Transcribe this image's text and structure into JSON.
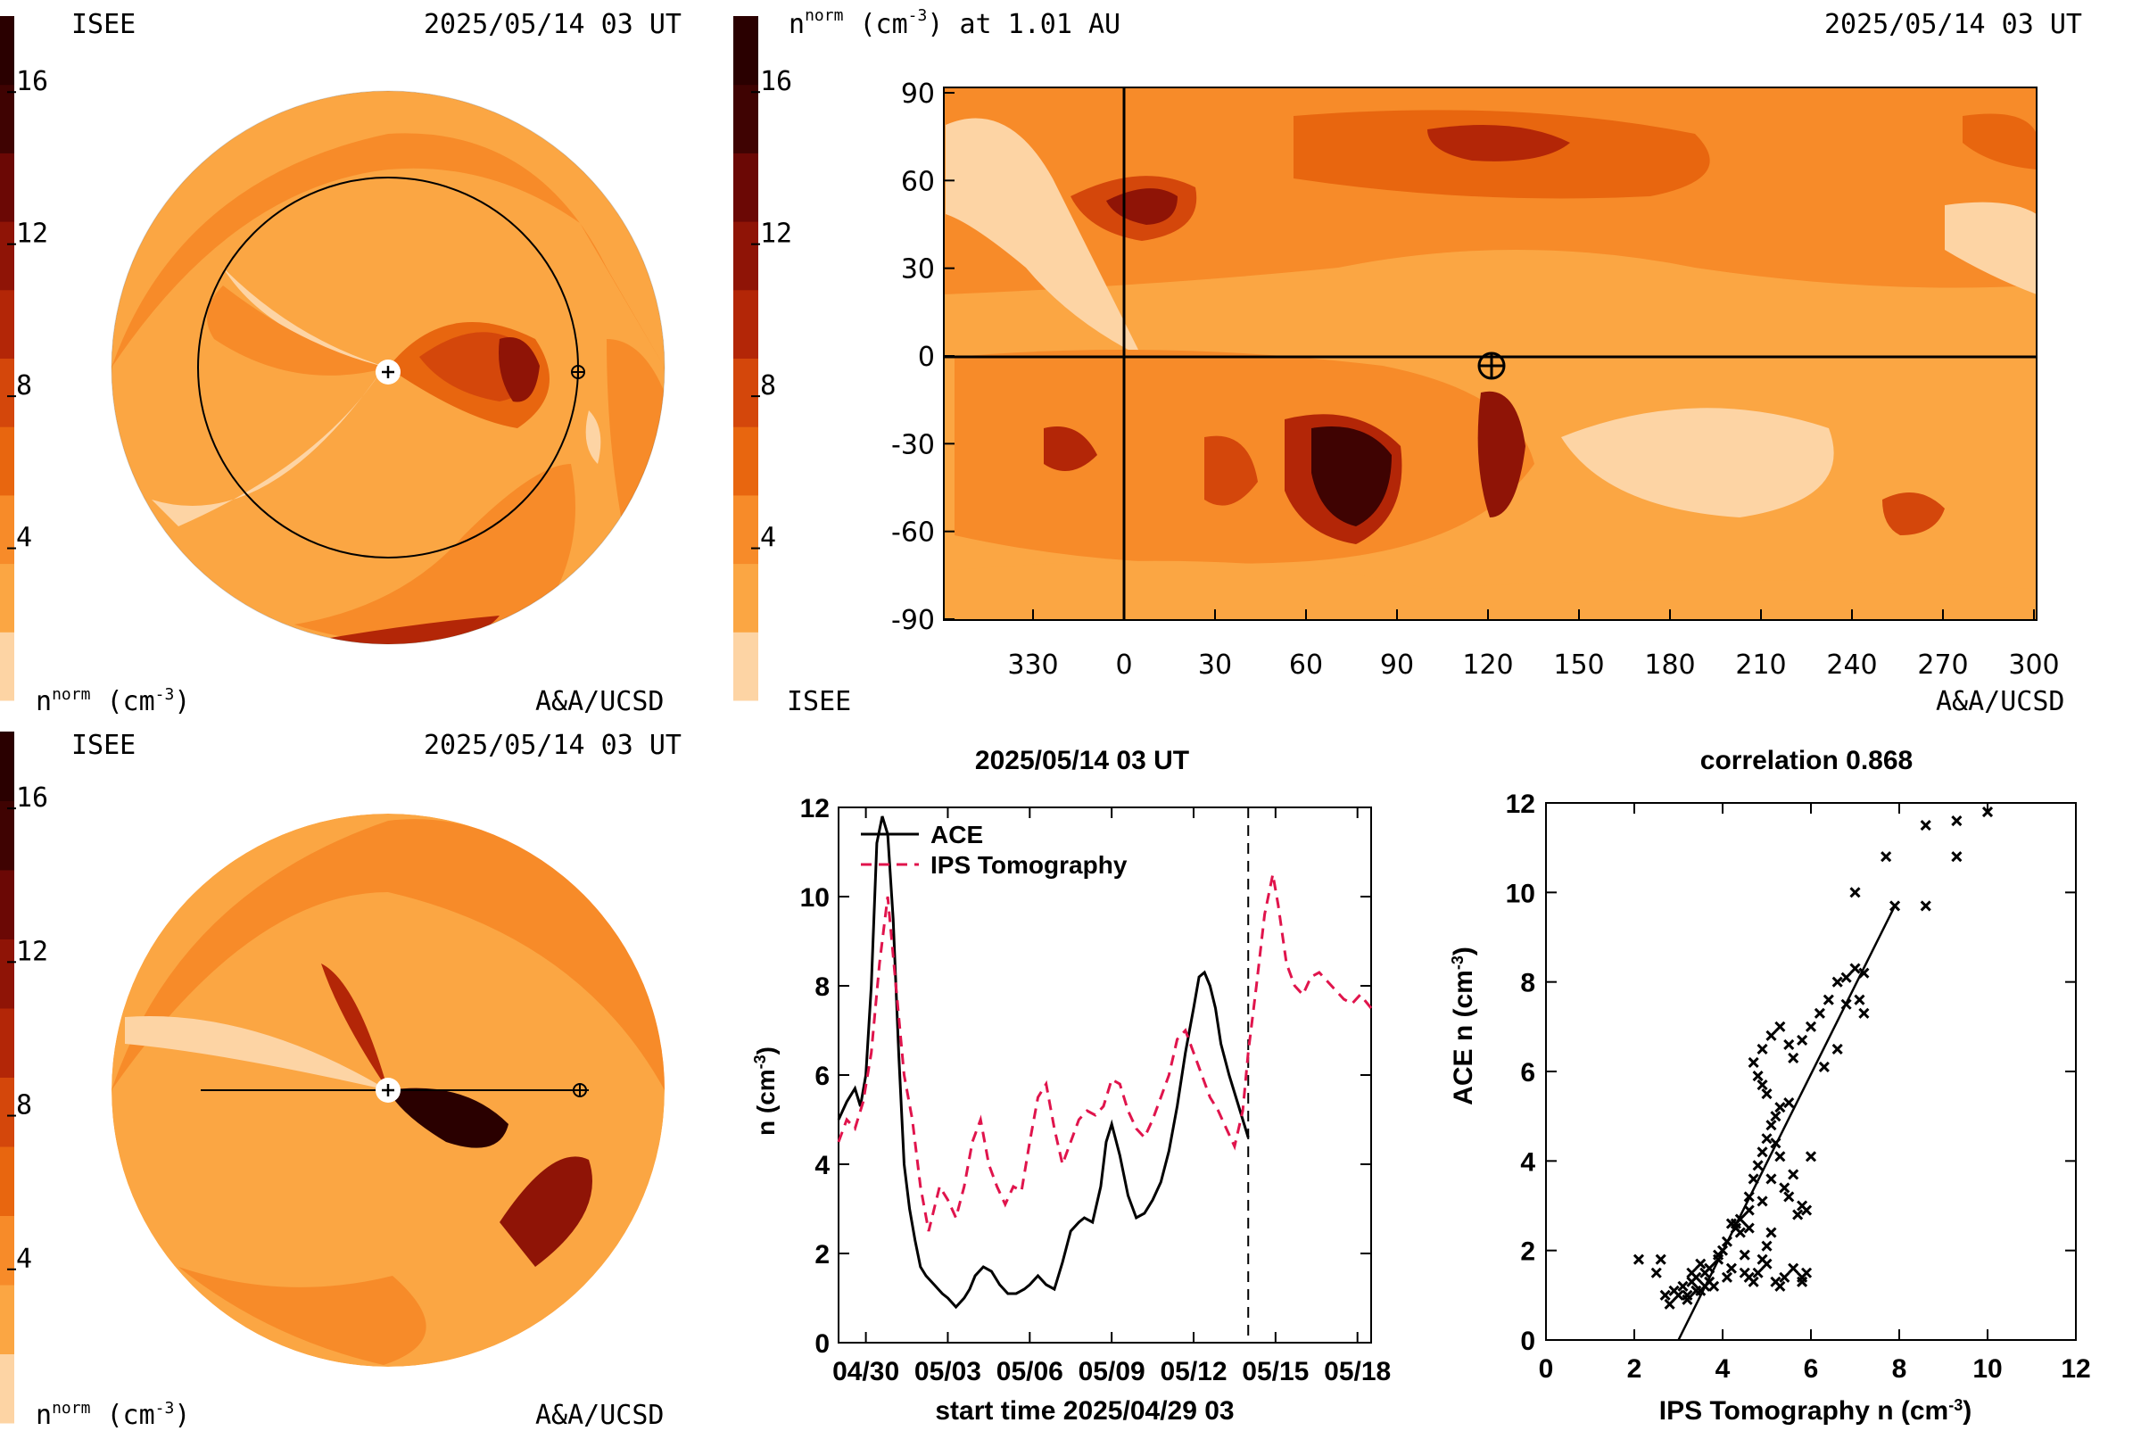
{
  "palette": [
    "#fdd4a4",
    "#fba643",
    "#f78b29",
    "#e8660f",
    "#d4470b",
    "#b32607",
    "#8f1406",
    "#6b0805",
    "#3f0302",
    "#2a0000"
  ],
  "colorbar": {
    "ticks": [
      "4",
      "8",
      "12",
      "16"
    ],
    "min": 0,
    "max": 18
  },
  "panel_top_left": {
    "label_left": "ISEE",
    "label_right": "2025/05/14 03 UT",
    "bottom_left": "n",
    "bottom_left_sup": "norm",
    "bottom_left_units": " (cm",
    "bottom_left_units_sup": "-3",
    "bottom_left_close": ")",
    "bottom_right": "A&A/UCSD"
  },
  "panel_bottom_left": {
    "label_left": "ISEE",
    "label_right": "2025/05/14 03 UT",
    "bottom_left": "n",
    "bottom_left_sup": "norm",
    "bottom_left_units": " (cm",
    "bottom_left_units_sup": "-3",
    "bottom_left_close": ")",
    "bottom_right": "A&A/UCSD"
  },
  "panel_map": {
    "title_main": "n",
    "title_sup": "norm",
    "title_units": " (cm",
    "title_units_sup": "-3",
    "title_rest": ") at 1.01 AU",
    "title_right": "2025/05/14 03 UT",
    "bottom_left": "ISEE",
    "bottom_right": "A&A/UCSD",
    "y_ticks": [
      "90",
      "60",
      "30",
      "0",
      "-30",
      "-60",
      "-90"
    ],
    "x_ticks": [
      "330",
      "0",
      "30",
      "60",
      "90",
      "120",
      "150",
      "180",
      "210",
      "240",
      "270",
      "300"
    ]
  },
  "chart_data": [
    {
      "type": "line",
      "title": "2025/05/14 03 UT",
      "xlabel": "start time 2025/04/29 03",
      "ylabel": "n (cm",
      "ylabel_sup": "-3",
      "ylabel_close": ")",
      "x_tick_labels": [
        "04/30",
        "05/03",
        "05/06",
        "05/09",
        "05/12",
        "05/15",
        "05/18"
      ],
      "x_tick_days": [
        1,
        4,
        7,
        10,
        13,
        16,
        19
      ],
      "xlim": [
        0,
        19.5
      ],
      "ylim": [
        0,
        12
      ],
      "y_ticks": [
        "0",
        "2",
        "4",
        "6",
        "8",
        "10",
        "12"
      ],
      "current_time_day": 15.0,
      "series": [
        {
          "name": "ACE",
          "color": "#000000",
          "dash": "",
          "x": [
            0,
            0.3,
            0.6,
            0.8,
            1.0,
            1.2,
            1.4,
            1.6,
            1.8,
            2.0,
            2.2,
            2.4,
            2.6,
            2.8,
            3.0,
            3.2,
            3.5,
            3.8,
            4.0,
            4.3,
            4.6,
            4.8,
            5.0,
            5.3,
            5.6,
            5.9,
            6.2,
            6.5,
            6.8,
            7.0,
            7.3,
            7.6,
            7.9,
            8.2,
            8.5,
            8.8,
            9.0,
            9.3,
            9.6,
            9.8,
            10.0,
            10.3,
            10.6,
            10.9,
            11.2,
            11.5,
            11.8,
            12.1,
            12.4,
            12.7,
            13.0,
            13.2,
            13.4,
            13.6,
            13.8,
            14.0,
            14.3,
            14.6,
            15.0
          ],
          "y": [
            5.0,
            5.4,
            5.7,
            5.3,
            6.0,
            8.0,
            11.2,
            11.8,
            11.4,
            9.5,
            6.5,
            4.0,
            3.0,
            2.3,
            1.7,
            1.5,
            1.3,
            1.1,
            1.0,
            0.8,
            1.0,
            1.2,
            1.5,
            1.7,
            1.6,
            1.3,
            1.1,
            1.1,
            1.2,
            1.3,
            1.5,
            1.3,
            1.2,
            1.8,
            2.5,
            2.7,
            2.8,
            2.7,
            3.5,
            4.5,
            4.9,
            4.2,
            3.3,
            2.8,
            2.9,
            3.2,
            3.6,
            4.3,
            5.3,
            6.5,
            7.5,
            8.2,
            8.3,
            8.0,
            7.5,
            6.7,
            6.0,
            5.4,
            4.6
          ]
        },
        {
          "name": "IPS Tomography",
          "color": "#e0144c",
          "dash": "12,8",
          "x": [
            0,
            0.3,
            0.6,
            0.9,
            1.2,
            1.5,
            1.8,
            2.1,
            2.4,
            2.7,
            3.0,
            3.3,
            3.7,
            4.0,
            4.3,
            4.6,
            4.9,
            5.2,
            5.5,
            5.8,
            6.1,
            6.4,
            6.7,
            7.0,
            7.3,
            7.6,
            7.9,
            8.2,
            8.5,
            8.8,
            9.1,
            9.4,
            9.7,
            10.0,
            10.3,
            10.6,
            10.9,
            11.2,
            11.5,
            11.8,
            12.1,
            12.4,
            12.7,
            13.0,
            13.3,
            13.6,
            13.9,
            14.2,
            14.5,
            14.8,
            15.0,
            15.3,
            15.6,
            15.9,
            16.1,
            16.4,
            16.7,
            17.0,
            17.3,
            17.6,
            17.9,
            18.2,
            18.5,
            18.8,
            19.1,
            19.5
          ],
          "y": [
            4.5,
            5.0,
            4.8,
            5.4,
            6.5,
            8.5,
            10.0,
            8.0,
            6.0,
            5.0,
            3.5,
            2.5,
            3.5,
            3.2,
            2.8,
            3.5,
            4.5,
            5.0,
            4.0,
            3.5,
            3.1,
            3.5,
            3.4,
            4.5,
            5.5,
            5.8,
            4.8,
            4.0,
            4.5,
            5.0,
            5.2,
            5.1,
            5.3,
            5.9,
            5.8,
            5.2,
            4.8,
            4.6,
            5.0,
            5.5,
            6.0,
            6.8,
            7.0,
            6.5,
            6.0,
            5.5,
            5.2,
            4.8,
            4.4,
            5.2,
            6.5,
            8.0,
            9.6,
            10.5,
            9.8,
            8.5,
            8.0,
            7.8,
            8.2,
            8.3,
            8.1,
            7.9,
            7.7,
            7.6,
            7.8,
            7.5
          ]
        }
      ],
      "legend_position": "top-left"
    },
    {
      "type": "scatter",
      "title": "correlation 0.868",
      "xlabel": "IPS Tomography n (cm",
      "xlabel_sup": "-3",
      "xlabel_close": ")",
      "ylabel": "ACE n (cm",
      "ylabel_sup": "-3",
      "ylabel_close": ")",
      "xlim": [
        0,
        12
      ],
      "ylim": [
        0,
        12
      ],
      "x_ticks": [
        "0",
        "2",
        "4",
        "6",
        "8",
        "10",
        "12"
      ],
      "y_ticks": [
        "0",
        "2",
        "4",
        "6",
        "8",
        "10",
        "12"
      ],
      "fit_line": {
        "x": [
          3.0,
          7.9
        ],
        "y": [
          0.0,
          9.7
        ]
      },
      "points": [
        [
          2.1,
          1.8
        ],
        [
          2.5,
          1.5
        ],
        [
          2.6,
          1.8
        ],
        [
          2.9,
          1.1
        ],
        [
          3.0,
          1.0
        ],
        [
          3.1,
          1.2
        ],
        [
          3.2,
          1.0
        ],
        [
          3.3,
          1.3
        ],
        [
          3.4,
          1.4
        ],
        [
          3.5,
          1.1
        ],
        [
          3.6,
          1.5
        ],
        [
          3.7,
          1.6
        ],
        [
          3.5,
          1.7
        ],
        [
          3.3,
          1.5
        ],
        [
          3.8,
          1.2
        ],
        [
          3.9,
          1.8
        ],
        [
          4.0,
          2.0
        ],
        [
          4.1,
          1.4
        ],
        [
          4.2,
          1.6
        ],
        [
          4.3,
          2.5
        ],
        [
          4.4,
          2.7
        ],
        [
          4.2,
          2.6
        ],
        [
          4.6,
          2.9
        ],
        [
          4.5,
          1.9
        ],
        [
          4.7,
          1.3
        ],
        [
          4.8,
          1.5
        ],
        [
          4.9,
          1.8
        ],
        [
          5.0,
          2.1
        ],
        [
          5.1,
          2.4
        ],
        [
          5.0,
          1.7
        ],
        [
          5.2,
          1.3
        ],
        [
          5.3,
          1.2
        ],
        [
          5.4,
          1.4
        ],
        [
          5.6,
          1.6
        ],
        [
          5.8,
          1.4
        ],
        [
          5.9,
          1.5
        ],
        [
          5.8,
          1.3
        ],
        [
          4.6,
          3.2
        ],
        [
          4.7,
          3.6
        ],
        [
          4.8,
          3.9
        ],
        [
          4.9,
          4.2
        ],
        [
          5.0,
          4.5
        ],
        [
          5.1,
          4.8
        ],
        [
          5.2,
          5.0
        ],
        [
          5.3,
          5.2
        ],
        [
          5.0,
          5.5
        ],
        [
          4.9,
          5.7
        ],
        [
          4.8,
          5.9
        ],
        [
          4.7,
          6.2
        ],
        [
          4.9,
          6.5
        ],
        [
          5.1,
          6.8
        ],
        [
          5.3,
          7.0
        ],
        [
          5.5,
          6.6
        ],
        [
          5.6,
          6.3
        ],
        [
          5.8,
          6.7
        ],
        [
          6.0,
          7.0
        ],
        [
          6.2,
          7.3
        ],
        [
          6.4,
          7.6
        ],
        [
          6.6,
          8.0
        ],
        [
          6.8,
          8.1
        ],
        [
          7.0,
          8.3
        ],
        [
          7.2,
          8.2
        ],
        [
          7.1,
          7.6
        ],
        [
          7.2,
          7.3
        ],
        [
          5.4,
          3.4
        ],
        [
          5.6,
          3.7
        ],
        [
          5.8,
          3.0
        ],
        [
          5.9,
          2.9
        ],
        [
          5.7,
          2.8
        ],
        [
          5.5,
          3.2
        ],
        [
          5.3,
          4.1
        ],
        [
          5.1,
          3.6
        ],
        [
          4.9,
          3.1
        ],
        [
          4.6,
          2.5
        ],
        [
          4.4,
          2.4
        ],
        [
          4.3,
          2.6
        ],
        [
          5.2,
          4.4
        ],
        [
          5.5,
          5.3
        ],
        [
          6.0,
          4.1
        ],
        [
          6.3,
          6.1
        ],
        [
          6.6,
          6.5
        ],
        [
          6.8,
          7.5
        ],
        [
          7.0,
          10.0
        ],
        [
          7.7,
          10.8
        ],
        [
          7.9,
          9.7
        ],
        [
          8.6,
          9.7
        ],
        [
          8.6,
          11.5
        ],
        [
          9.3,
          10.8
        ],
        [
          9.3,
          11.6
        ],
        [
          10.0,
          11.8
        ],
        [
          4.1,
          2.2
        ],
        [
          3.9,
          1.9
        ],
        [
          3.7,
          1.3
        ],
        [
          3.6,
          1.2
        ],
        [
          3.4,
          1.1
        ],
        [
          3.2,
          0.9
        ],
        [
          2.8,
          0.8
        ],
        [
          2.7,
          1.0
        ],
        [
          4.5,
          1.5
        ],
        [
          4.6,
          1.4
        ]
      ]
    }
  ]
}
